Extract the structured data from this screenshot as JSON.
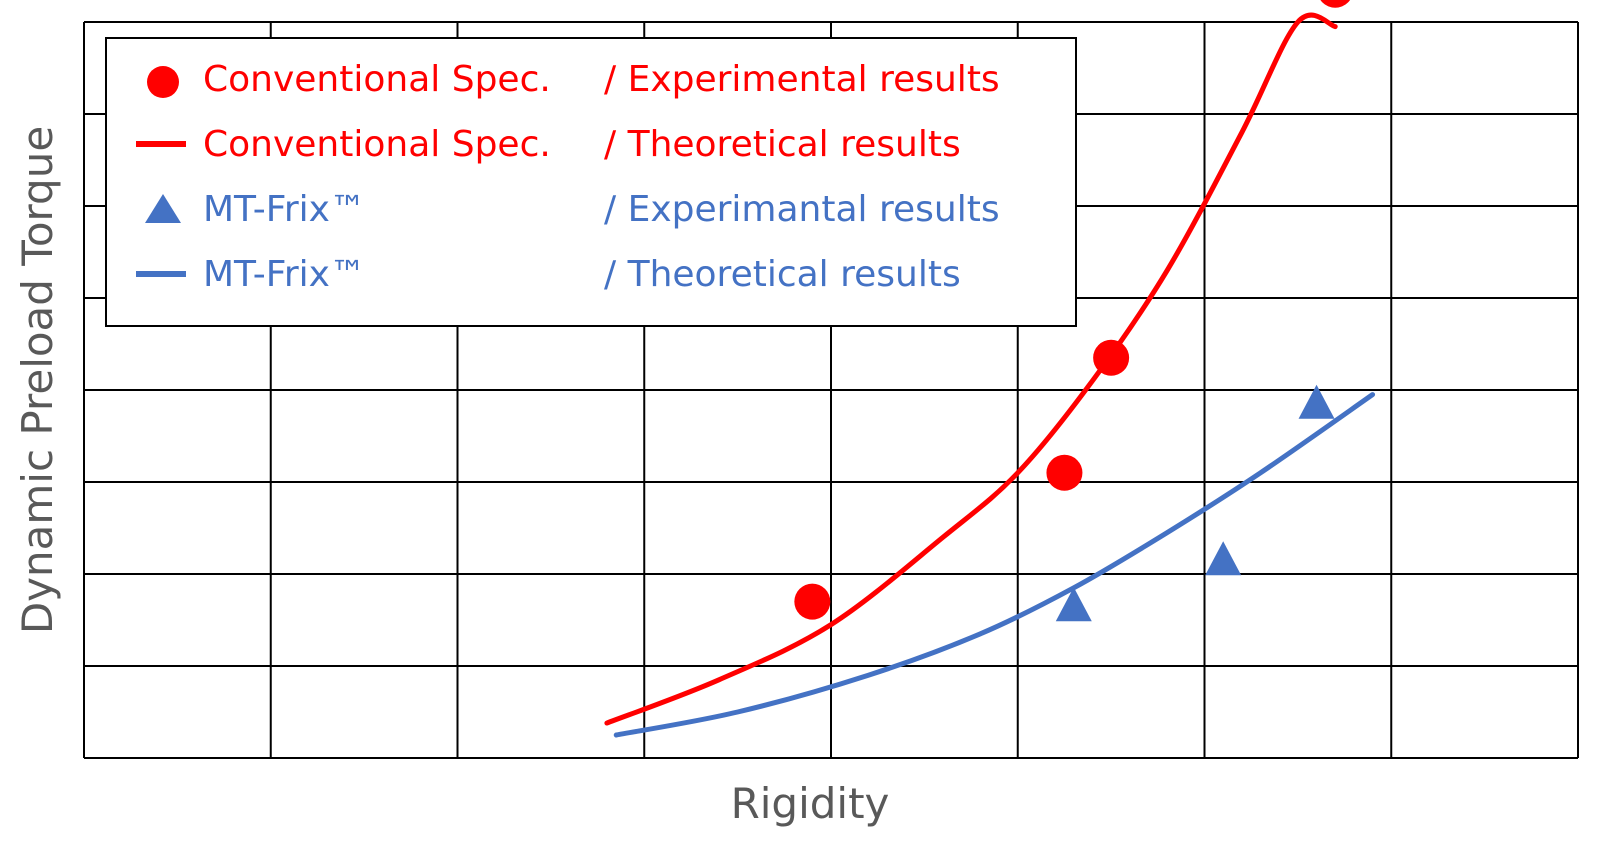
{
  "chart_data": {
    "type": "scatter",
    "xlabel": "Rigidity",
    "ylabel": "Dynamic Preload Torque",
    "xlim": [
      0,
      8
    ],
    "ylim": [
      0,
      8
    ],
    "grid": true,
    "legend_placement": "top-left",
    "series": [
      {
        "name": "Conventional Spec. / Experimental results",
        "legend_left": "Conventional Spec.",
        "legend_right": "/ Experimental results",
        "kind": "scatter",
        "marker": "circle",
        "color": "#FF0000",
        "x": [
          3.9,
          5.25,
          5.5,
          6.7
        ],
        "y": [
          1.7,
          3.1,
          4.35,
          8.35
        ]
      },
      {
        "name": "Conventional Spec. / Theoretical results",
        "legend_left": "Conventional Spec.",
        "legend_right": "/ Theoretical results",
        "kind": "line",
        "color": "#FF0000",
        "x": [
          2.8,
          3.4,
          4.0,
          4.6,
          5.0,
          5.4,
          5.8,
          6.2,
          6.5,
          6.7
        ],
        "y": [
          0.38,
          0.85,
          1.45,
          2.4,
          3.1,
          4.1,
          5.3,
          6.8,
          8.0,
          7.95
        ]
      },
      {
        "name": "MT-Frix™ / Experimantal results",
        "legend_left": "MT-Frix™",
        "legend_right": "/ Experimantal results",
        "kind": "scatter",
        "marker": "triangle",
        "color": "#4472C4",
        "x": [
          5.3,
          6.1,
          6.6
        ],
        "y": [
          1.65,
          2.15,
          3.85
        ]
      },
      {
        "name": "MT-Frix™ / Theoretical results",
        "legend_left": "MT-Frix™",
        "legend_right": "/ Theoretical results",
        "kind": "line",
        "color": "#4472C4",
        "x": [
          2.85,
          3.5,
          4.2,
          4.8,
          5.3,
          5.8,
          6.3,
          6.9
        ],
        "y": [
          0.25,
          0.5,
          0.9,
          1.35,
          1.85,
          2.45,
          3.1,
          3.95
        ]
      }
    ]
  }
}
